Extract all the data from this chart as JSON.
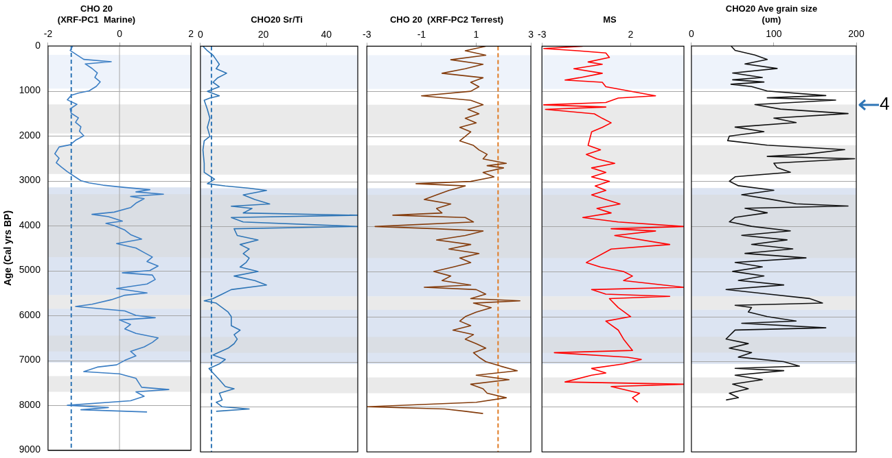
{
  "chart_data": [
    {
      "type": "line",
      "title": "CHO 20\n(XRF-PC1  Marine)",
      "ylabel": "Age (Cal yrs BP)",
      "xlim": [
        -2,
        2
      ],
      "xticks": [
        -2,
        0,
        2
      ],
      "ylim": [
        9000,
        0
      ],
      "yticks": [
        0,
        1000,
        2000,
        3000,
        4000,
        5000,
        6000,
        7000,
        8000,
        9000
      ],
      "grid": "y",
      "series": [
        {
          "color": "#3b7ec4",
          "x": [
            -1.31,
            -1.38,
            -1.19,
            -1.0,
            -0.23,
            -0.96,
            -0.77,
            -0.62,
            -0.69,
            -0.54,
            -0.65,
            -0.85,
            -1.15,
            -1.35,
            -1.46,
            -1.19,
            -1.38,
            -1.35,
            -1.15,
            -1.23,
            -1.08,
            -1.12,
            -1.0,
            -1.23,
            -1.38,
            -1.69,
            -1.81,
            -1.69,
            -1.77,
            -1.62,
            -1.46,
            -1.27,
            -1.08,
            -0.85,
            -0.46,
            0.15,
            0.85,
            0.46,
            1.23,
            0.31,
            0.69,
            0.46,
            0.31,
            -0.15,
            -0.77,
            -0.31,
            0.08,
            -0.38,
            -0.15,
            0.15,
            0.31,
            0.62,
            -0.08,
            0.46,
            0.69,
            0.92,
            0.77,
            1.08,
            0.85,
            0.08,
            0.92,
            1.0,
            0.77,
            -0.08,
            0.77,
            0.15,
            -0.23,
            -0.77,
            -1.23,
            0.15,
            0.46,
            1.0,
            0.0,
            0.31,
            0.15,
            0.46,
            1.08,
            0.92,
            0.69,
            0.31,
            0.46,
            0.15,
            -0.08,
            -0.62,
            -1.0,
            0.0,
            0.46,
            0.54,
            0.62,
            1.38,
            0.46,
            0.69,
            0.31,
            -1.46,
            -0.31,
            -1.08,
            0.77
          ],
          "values": [
            0,
            100,
            200,
            300,
            350,
            400,
            500,
            600,
            700,
            800,
            900,
            1000,
            1050,
            1100,
            1200,
            1300,
            1400,
            1500,
            1600,
            1700,
            1800,
            1900,
            2000,
            2100,
            2200,
            2250,
            2400,
            2500,
            2600,
            2700,
            2800,
            2900,
            3000,
            3050,
            3100,
            3150,
            3200,
            3250,
            3300,
            3350,
            3400,
            3500,
            3600,
            3700,
            3750,
            3800,
            3900,
            3950,
            4000,
            4100,
            4200,
            4300,
            4400,
            4500,
            4600,
            4700,
            4800,
            4900,
            5000,
            5050,
            5100,
            5200,
            5300,
            5400,
            5500,
            5550,
            5650,
            5750,
            5800,
            5900,
            6000,
            6050,
            6100,
            6200,
            6300,
            6400,
            6500,
            6600,
            6700,
            6800,
            6900,
            7000,
            7100,
            7150,
            7250,
            7300,
            7400,
            7500,
            7600,
            7650,
            7700,
            7800,
            7900,
            8000,
            8050,
            8100,
            8150
          ]
        }
      ],
      "ref_lines": [
        {
          "axis": "x",
          "value": 0,
          "color": "#a6a6a6",
          "line_style": "solid"
        },
        {
          "axis": "x",
          "value": -1.35,
          "color": "#2e75b6",
          "line_style": "dashed"
        }
      ],
      "bands": [
        {
          "axis": "y",
          "from": 200,
          "to": 950,
          "color": "#eef3fb"
        },
        {
          "axis": "y",
          "from": 3150,
          "to": 5550,
          "color": "#dce4f2"
        },
        {
          "axis": "y",
          "from": 5850,
          "to": 7050,
          "color": "#dce4f2"
        },
        {
          "axis": "y",
          "from": 1300,
          "to": 1950,
          "color": "#d9d9d9"
        },
        {
          "axis": "y",
          "from": 2200,
          "to": 2850,
          "color": "#d9d9d9"
        },
        {
          "axis": "y",
          "from": 3300,
          "to": 4700,
          "color": "#d9d9d9"
        },
        {
          "axis": "y",
          "from": 5550,
          "to": 5850,
          "color": "#d9d9d9"
        },
        {
          "axis": "y",
          "from": 6450,
          "to": 6800,
          "color": "#d9d9d9"
        },
        {
          "axis": "y",
          "from": 7350,
          "to": 7700,
          "color": "#d9d9d9"
        }
      ]
    },
    {
      "type": "line",
      "title": "CHO20 Sr/Ti",
      "xlim": [
        0,
        50
      ],
      "xticks": [
        0,
        20,
        40
      ],
      "ylim": [
        9000,
        0
      ],
      "yticks": [
        0,
        1000,
        2000,
        3000,
        4000,
        5000,
        6000,
        7000,
        8000,
        9000
      ],
      "grid": "y",
      "tick_labels": "x",
      "series": [
        {
          "color": "#2e75b6",
          "x": [
            0.8,
            2.2,
            4,
            5,
            6,
            5,
            8.3,
            5.5,
            4,
            6,
            2.2,
            6,
            3,
            1.2,
            2.2,
            3,
            2.2,
            3,
            1.2,
            0.8,
            1.2,
            1.2,
            4.5,
            2.2,
            7.9,
            15.5,
            21,
            13.6,
            17.3,
            22,
            9.8,
            16.4,
            13.6,
            50,
            9.8,
            13.6,
            50,
            10.7,
            11.7,
            18.3,
            12.6,
            15.5,
            13.6,
            15.5,
            14.5,
            12.6,
            18.3,
            10.7,
            17.3,
            21,
            9.8,
            6.9,
            4,
            1.2,
            5,
            6.9,
            8.8,
            9.8,
            9.8,
            12.6,
            10.7,
            11.7,
            10.7,
            8.8,
            4,
            7.9,
            6,
            2.7,
            4,
            6,
            7.9,
            10.7,
            6,
            6.9,
            5,
            6.9,
            15.5,
            5
          ],
          "values": [
            0,
            100,
            200,
            300,
            400,
            500,
            600,
            700,
            800,
            900,
            1000,
            1100,
            1150,
            1200,
            1400,
            1600,
            1800,
            2000,
            2100,
            2300,
            2600,
            2800,
            2950,
            3050,
            3100,
            3150,
            3200,
            3300,
            3400,
            3500,
            3550,
            3600,
            3700,
            3750,
            3800,
            3900,
            4000,
            4050,
            4200,
            4300,
            4400,
            4500,
            4600,
            4700,
            4800,
            4900,
            5000,
            5100,
            5200,
            5300,
            5400,
            5500,
            5600,
            5650,
            5700,
            5800,
            5900,
            6000,
            6200,
            6300,
            6400,
            6500,
            6600,
            6700,
            6850,
            6950,
            7050,
            7150,
            7250,
            7400,
            7550,
            7600,
            7700,
            7850,
            7900,
            8000,
            8050,
            8100
          ]
        }
      ],
      "ref_lines": [
        {
          "axis": "x",
          "value": 3.5,
          "color": "#2e75b6",
          "line_style": "dashed"
        }
      ],
      "bands": [
        {
          "axis": "y",
          "from": 200,
          "to": 950,
          "color": "#eef3fb"
        },
        {
          "axis": "y",
          "from": 3150,
          "to": 5550,
          "color": "#dce4f2"
        },
        {
          "axis": "y",
          "from": 5850,
          "to": 7050,
          "color": "#dce4f2"
        },
        {
          "axis": "y",
          "from": 1300,
          "to": 1950,
          "color": "#d9d9d9"
        },
        {
          "axis": "y",
          "from": 2200,
          "to": 2850,
          "color": "#d9d9d9"
        },
        {
          "axis": "y",
          "from": 3300,
          "to": 4700,
          "color": "#d9d9d9"
        },
        {
          "axis": "y",
          "from": 5550,
          "to": 5850,
          "color": "#d9d9d9"
        },
        {
          "axis": "y",
          "from": 6450,
          "to": 6800,
          "color": "#d9d9d9"
        },
        {
          "axis": "y",
          "from": 7350,
          "to": 7700,
          "color": "#d9d9d9"
        }
      ]
    },
    {
      "type": "line",
      "title": "CHO 20  (XRF-PC2 Terrest)",
      "xlim": [
        -3,
        3
      ],
      "xticks": [
        -3,
        -1,
        1,
        3
      ],
      "ylim": [
        9000,
        0
      ],
      "yticks": [
        0,
        1000,
        2000,
        3000,
        4000,
        5000,
        6000,
        7000,
        8000,
        9000
      ],
      "grid": "y",
      "tick_labels": "x",
      "series": [
        {
          "color": "#843c0c",
          "x": [
            1.35,
            0.6,
            1.35,
            0.07,
            1.25,
            0.6,
            -0.25,
            1.25,
            0.8,
            1.1,
            0.8,
            -1.0,
            0.8,
            1.25,
            0.7,
            1.1,
            0.6,
            1.0,
            0.4,
            0.8,
            0.6,
            0.4,
            0.9,
            1.1,
            1.4,
            1.25,
            2.1,
            1.4,
            2.0,
            1.25,
            1.65,
            0.8,
            -1.2,
            0.6,
            0,
            -0.45,
            -0.9,
            0.07,
            -0.45,
            -0.25,
            -2.05,
            0.6,
            0.9,
            -2.7,
            -0.45,
            1.25,
            0.6,
            -0.45,
            0.8,
            0,
            1.1,
            0.4,
            0.8,
            0.15,
            -0.55,
            0.07,
            -0.25,
            0.8,
            -0.9,
            1.0,
            1.35,
            0.8,
            2.6,
            0.9,
            1.55,
            1.0,
            0.6,
            0.4,
            0.8,
            0.15,
            0.9,
            0.6,
            1.0,
            1.35,
            0.9,
            1.1,
            1.35,
            1.9,
            2.5,
            1.0,
            2.2,
            0.8,
            1.25,
            1.4,
            2.1,
            1.0,
            -3.0,
            -0.15,
            0.6,
            1.25
          ],
          "values": [
            0,
            100,
            200,
            300,
            400,
            500,
            600,
            700,
            800,
            900,
            1000,
            1100,
            1200,
            1300,
            1400,
            1500,
            1600,
            1700,
            1800,
            1900,
            2000,
            2100,
            2200,
            2300,
            2400,
            2500,
            2600,
            2650,
            2700,
            2800,
            2900,
            3000,
            3050,
            3100,
            3200,
            3300,
            3400,
            3500,
            3600,
            3700,
            3750,
            3800,
            3900,
            4000,
            4050,
            4100,
            4200,
            4300,
            4400,
            4500,
            4600,
            4700,
            4800,
            4900,
            5000,
            5100,
            5200,
            5300,
            5350,
            5400,
            5500,
            5600,
            5650,
            5700,
            5800,
            5900,
            6000,
            6100,
            6200,
            6300,
            6400,
            6500,
            6600,
            6700,
            6800,
            6900,
            7000,
            7100,
            7200,
            7300,
            7400,
            7500,
            7600,
            7700,
            7800,
            7900,
            8000,
            8050,
            8100,
            8150
          ]
        }
      ],
      "ref_lines": [
        {
          "axis": "x",
          "value": 1.8,
          "color": "#e07b24",
          "line_style": "dashed"
        }
      ],
      "bands": [
        {
          "axis": "y",
          "from": 200,
          "to": 950,
          "color": "#eef3fb"
        },
        {
          "axis": "y",
          "from": 3150,
          "to": 5550,
          "color": "#dce4f2"
        },
        {
          "axis": "y",
          "from": 5850,
          "to": 7050,
          "color": "#dce4f2"
        },
        {
          "axis": "y",
          "from": 1300,
          "to": 1950,
          "color": "#d9d9d9"
        },
        {
          "axis": "y",
          "from": 2200,
          "to": 2850,
          "color": "#d9d9d9"
        },
        {
          "axis": "y",
          "from": 3300,
          "to": 4700,
          "color": "#d9d9d9"
        },
        {
          "axis": "y",
          "from": 5550,
          "to": 5850,
          "color": "#d9d9d9"
        },
        {
          "axis": "y",
          "from": 6450,
          "to": 6800,
          "color": "#d9d9d9"
        },
        {
          "axis": "y",
          "from": 7350,
          "to": 7700,
          "color": "#d9d9d9"
        }
      ]
    },
    {
      "type": "line",
      "title": "MS",
      "xlim": [
        -3,
        5
      ],
      "xticks": [
        -3,
        2
      ],
      "ylim": [
        9000,
        0
      ],
      "yticks": [
        0,
        1000,
        2000,
        3000,
        4000,
        5000,
        6000,
        7000,
        8000,
        9000
      ],
      "grid": "y",
      "tick_labels": "x",
      "series": [
        {
          "color": "#ff0000",
          "x": [
            -0.7,
            -2.9,
            -1.0,
            0.6,
            0.8,
            -0.4,
            0.4,
            -1.2,
            0.4,
            -0.9,
            -1.7,
            0.4,
            0.6,
            3.4,
            1.3,
            0.6,
            -2.9,
            0.6,
            -2.8,
            -0.05,
            0.4,
            0.9,
            0.4,
            -0.2,
            -0.4,
            0.3,
            -0.5,
            0.1,
            1.1,
            -0.2,
            0.6,
            -0.2,
            0.8,
            0.0,
            0.6,
            -0.2,
            0.6,
            1.4,
            0.1,
            0.9,
            -0.7,
            1.3,
            5.0,
            0.9,
            3.4,
            1.1,
            4.2,
            0.9,
            -0.5,
            0.3,
            1.6,
            2.1,
            1.6,
            5.0,
            -0.2,
            0.6,
            4.2,
            0.8,
            1.3,
            2.0,
            0.6,
            1.3,
            1.6,
            2.1,
            -2.3,
            1.8,
            2.6,
            1.6,
            -0.2,
            0.6,
            -0.2,
            -1.7,
            5.0,
            0.9,
            2.5,
            2.1,
            2.4
          ],
          "values": [
            0,
            50,
            100,
            150,
            250,
            350,
            400,
            500,
            600,
            700,
            750,
            800,
            900,
            1100,
            1150,
            1250,
            1300,
            1350,
            1400,
            1500,
            1600,
            1700,
            1800,
            1900,
            2200,
            2300,
            2400,
            2500,
            2600,
            2700,
            2800,
            2900,
            3000,
            3100,
            3200,
            3300,
            3400,
            3500,
            3600,
            3700,
            3800,
            3900,
            4000,
            4050,
            4100,
            4200,
            4400,
            4500,
            4800,
            4900,
            5000,
            5100,
            5200,
            5350,
            5400,
            5500,
            5550,
            5600,
            5800,
            6000,
            6100,
            6300,
            6500,
            6750,
            6800,
            6900,
            6950,
            7050,
            7150,
            7250,
            7300,
            7450,
            7500,
            7550,
            7700,
            7800,
            7900
          ]
        }
      ],
      "bands": [
        {
          "axis": "y",
          "from": 200,
          "to": 950,
          "color": "#eef3fb"
        },
        {
          "axis": "y",
          "from": 3150,
          "to": 5550,
          "color": "#dce4f2"
        },
        {
          "axis": "y",
          "from": 5850,
          "to": 7050,
          "color": "#dce4f2"
        },
        {
          "axis": "y",
          "from": 1300,
          "to": 1950,
          "color": "#d9d9d9"
        },
        {
          "axis": "y",
          "from": 2200,
          "to": 2850,
          "color": "#d9d9d9"
        },
        {
          "axis": "y",
          "from": 3300,
          "to": 4700,
          "color": "#d9d9d9"
        },
        {
          "axis": "y",
          "from": 5550,
          "to": 5850,
          "color": "#d9d9d9"
        },
        {
          "axis": "y",
          "from": 6450,
          "to": 6800,
          "color": "#d9d9d9"
        },
        {
          "axis": "y",
          "from": 7350,
          "to": 7700,
          "color": "#d9d9d9"
        }
      ]
    },
    {
      "type": "line",
      "title": "CHO20 Ave grain size\n(υm)",
      "xlim": [
        0,
        200
      ],
      "xticks": [
        0,
        100,
        200
      ],
      "ylim": [
        9000,
        0
      ],
      "yticks": [
        0,
        1000,
        2000,
        3000,
        4000,
        5000,
        6000,
        7000,
        8000,
        9000
      ],
      "grid": "y",
      "tick_labels": "x",
      "series": [
        {
          "color": "#111111",
          "x": [
            48,
            53,
            77,
            92,
            65,
            104,
            50,
            86,
            50,
            88,
            48,
            73,
            92,
            163,
            92,
            175,
            77,
            108,
            190,
            100,
            127,
            53,
            88,
            46,
            44,
            92,
            186,
            139,
            92,
            198,
            100,
            104,
            120,
            53,
            46,
            57,
            100,
            61,
            96,
            127,
            190,
            65,
            92,
            53,
            46,
            73,
            120,
            61,
            116,
            73,
            123,
            65,
            139,
            53,
            86,
            50,
            88,
            57,
            112,
            42,
            92,
            143,
            159,
            53,
            73,
            69,
            92,
            127,
            61,
            163,
            53,
            42,
            69,
            46,
            73,
            57,
            112,
            131,
            53,
            112,
            53,
            86,
            50,
            69,
            46,
            57,
            42
          ],
          "values": [
            0,
            100,
            200,
            300,
            400,
            500,
            600,
            700,
            750,
            800,
            850,
            900,
            1000,
            1100,
            1150,
            1200,
            1300,
            1400,
            1500,
            1600,
            1700,
            1800,
            1900,
            2000,
            2100,
            2200,
            2300,
            2400,
            2450,
            2500,
            2600,
            2700,
            2800,
            2900,
            3000,
            3100,
            3200,
            3300,
            3400,
            3500,
            3550,
            3600,
            3700,
            3800,
            3900,
            4000,
            4100,
            4200,
            4300,
            4400,
            4500,
            4600,
            4700,
            4800,
            4900,
            5000,
            5100,
            5200,
            5300,
            5400,
            5500,
            5600,
            5700,
            5750,
            5800,
            5900,
            6000,
            6100,
            6150,
            6250,
            6300,
            6500,
            6600,
            6700,
            6800,
            6900,
            7000,
            7100,
            7150,
            7200,
            7300,
            7400,
            7500,
            7600,
            7700,
            7800,
            7850
          ]
        }
      ],
      "annotations": [
        {
          "text": "4",
          "x": 200,
          "y": 1300
        }
      ],
      "bands": [
        {
          "axis": "y",
          "from": 200,
          "to": 950,
          "color": "#eef3fb"
        },
        {
          "axis": "y",
          "from": 3150,
          "to": 5550,
          "color": "#dce4f2"
        },
        {
          "axis": "y",
          "from": 5850,
          "to": 7050,
          "color": "#dce4f2"
        },
        {
          "axis": "y",
          "from": 1300,
          "to": 1950,
          "color": "#d9d9d9"
        },
        {
          "axis": "y",
          "from": 2200,
          "to": 2850,
          "color": "#d9d9d9"
        },
        {
          "axis": "y",
          "from": 3300,
          "to": 4700,
          "color": "#d9d9d9"
        },
        {
          "axis": "y",
          "from": 5550,
          "to": 5850,
          "color": "#d9d9d9"
        },
        {
          "axis": "y",
          "from": 6450,
          "to": 6800,
          "color": "#d9d9d9"
        },
        {
          "axis": "y",
          "from": 7350,
          "to": 7700,
          "color": "#d9d9d9"
        }
      ]
    }
  ]
}
